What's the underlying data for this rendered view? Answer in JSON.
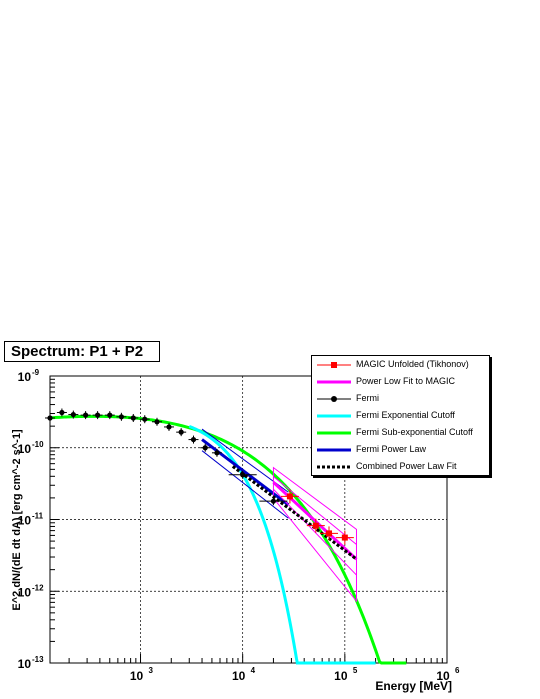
{
  "title": "Spectrum: P1 + P2",
  "chart_data": {
    "type": "scatter",
    "title": "Spectrum: P1 + P2",
    "xlabel": "Energy [MeV]",
    "ylabel": "E^2 dN/(dE dt dA) [erg cm^-2 s^-1]",
    "xscale": "log",
    "yscale": "log",
    "xlim": [
      130,
      1000000
    ],
    "ylim": [
      1e-13,
      1e-09
    ],
    "grid": true,
    "legend_position": "top-right",
    "x_tick_labels": [
      "10",
      "10",
      "10",
      "10"
    ],
    "x_tick_exponents": [
      "3",
      "4",
      "5",
      "6"
    ],
    "y_tick_labels": [
      "10",
      "10",
      "10",
      "10",
      "10"
    ],
    "y_tick_exponents": [
      "-13",
      "-12",
      "-11",
      "-10",
      "-9"
    ],
    "series": [
      {
        "name": "MAGIC Unfolded (Tikhonov)",
        "color": "#ff0000",
        "marker": "square",
        "points": [
          {
            "x": 29000,
            "y": 2.1e-11
          },
          {
            "x": 52000,
            "y": 8.2e-12
          },
          {
            "x": 70000,
            "y": 6.4e-12
          },
          {
            "x": 100000,
            "y": 5.6e-12
          }
        ]
      },
      {
        "name": "Power Low Fit to MAGIC",
        "color": "#ff00ff",
        "line": {
          "x": [
            20000,
            130000
          ],
          "y": [
            3.3e-11,
            2.8e-12
          ]
        }
      },
      {
        "name": "Fermi",
        "color": "#000000",
        "marker": "circle",
        "points": [
          {
            "x": 130,
            "y": 2.6e-10
          },
          {
            "x": 170,
            "y": 3.1e-10
          },
          {
            "x": 220,
            "y": 2.9e-10
          },
          {
            "x": 290,
            "y": 2.85e-10
          },
          {
            "x": 380,
            "y": 2.85e-10
          },
          {
            "x": 500,
            "y": 2.85e-10
          },
          {
            "x": 650,
            "y": 2.7e-10
          },
          {
            "x": 850,
            "y": 2.6e-10
          },
          {
            "x": 1100,
            "y": 2.5e-10
          },
          {
            "x": 1450,
            "y": 2.3e-10
          },
          {
            "x": 1900,
            "y": 1.95e-10
          },
          {
            "x": 2500,
            "y": 1.65e-10
          },
          {
            "x": 3300,
            "y": 1.3e-10
          },
          {
            "x": 4300,
            "y": 1e-10
          },
          {
            "x": 5600,
            "y": 8.5e-11
          },
          {
            "x": 10000,
            "y": 4.2e-11
          },
          {
            "x": 20000,
            "y": 1.8e-11
          }
        ]
      },
      {
        "name": "Fermi Exponential Cutoff",
        "color": "#00ffff",
        "cutoff_energy": 3800,
        "exponent": 1
      },
      {
        "name": "Fermi Sub-exponential Cutoff",
        "color": "#00ff00",
        "cutoff_energy": 1300,
        "exponent": 0.45
      },
      {
        "name": "Fermi Power Law",
        "color": "#0000cc",
        "line": {
          "x": [
            4000,
            28000
          ],
          "y": [
            1.3e-10,
            1.6e-11
          ]
        }
      },
      {
        "name": "Combined Power Law Fit",
        "color": "#000000",
        "line": {
          "x": [
            8000,
            130000
          ],
          "y": [
            5.5e-11,
            2.8e-12
          ]
        }
      }
    ]
  }
}
